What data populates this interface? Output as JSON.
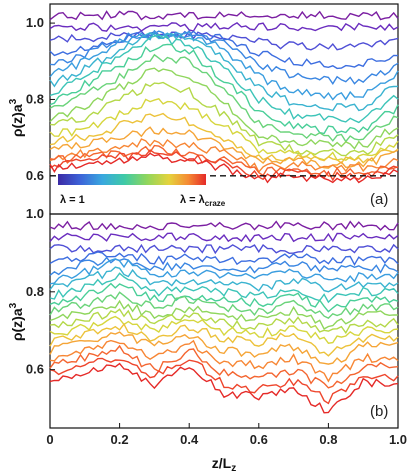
{
  "chart_data": [
    {
      "panel": "(a)",
      "type": "line",
      "xlim": [
        0,
        1
      ],
      "ylim": [
        0.5,
        1.05
      ],
      "yticks": [
        "0.6",
        "0.8",
        "1.0"
      ],
      "reference_line": {
        "y": 0.6,
        "style": "dashed"
      },
      "legend": {
        "min_label": "λ = 1",
        "max_label_prefix": "λ = λ",
        "max_label_sub": "craze"
      },
      "series": [
        {
          "x": [
            0,
            0.1,
            0.2,
            0.3,
            0.4,
            0.5,
            0.6,
            0.7,
            0.8,
            0.9,
            1.0
          ],
          "values": [
            1.02,
            1.02,
            1.02,
            1.02,
            1.02,
            1.02,
            1.02,
            1.02,
            1.02,
            1.02,
            1.02
          ]
        },
        {
          "x": [
            0,
            0.1,
            0.2,
            0.3,
            0.4,
            0.5,
            0.6,
            0.7,
            0.8,
            0.9,
            1.0
          ],
          "values": [
            0.99,
            0.99,
            0.99,
            0.99,
            0.99,
            0.99,
            0.99,
            0.99,
            0.99,
            0.99,
            0.99
          ]
        },
        {
          "x": [
            0,
            0.1,
            0.2,
            0.3,
            0.4,
            0.5,
            0.6,
            0.7,
            0.8,
            0.9,
            1.0
          ],
          "values": [
            0.96,
            0.96,
            0.97,
            0.97,
            0.97,
            0.96,
            0.95,
            0.94,
            0.94,
            0.94,
            0.95
          ]
        },
        {
          "x": [
            0,
            0.1,
            0.2,
            0.3,
            0.4,
            0.5,
            0.6,
            0.7,
            0.8,
            0.9,
            1.0
          ],
          "values": [
            0.92,
            0.93,
            0.96,
            0.97,
            0.97,
            0.96,
            0.92,
            0.9,
            0.89,
            0.89,
            0.92
          ]
        },
        {
          "x": [
            0,
            0.1,
            0.2,
            0.3,
            0.4,
            0.5,
            0.6,
            0.7,
            0.8,
            0.9,
            1.0
          ],
          "values": [
            0.89,
            0.92,
            0.96,
            0.97,
            0.97,
            0.95,
            0.89,
            0.86,
            0.85,
            0.85,
            0.89
          ]
        },
        {
          "x": [
            0,
            0.1,
            0.2,
            0.3,
            0.4,
            0.5,
            0.6,
            0.7,
            0.8,
            0.9,
            1.0
          ],
          "values": [
            0.86,
            0.9,
            0.95,
            0.97,
            0.97,
            0.93,
            0.86,
            0.82,
            0.81,
            0.81,
            0.87
          ]
        },
        {
          "x": [
            0,
            0.1,
            0.2,
            0.3,
            0.4,
            0.5,
            0.6,
            0.7,
            0.8,
            0.9,
            1.0
          ],
          "values": [
            0.84,
            0.88,
            0.93,
            0.97,
            0.96,
            0.91,
            0.83,
            0.79,
            0.78,
            0.78,
            0.84
          ]
        },
        {
          "x": [
            0,
            0.1,
            0.2,
            0.3,
            0.4,
            0.5,
            0.6,
            0.7,
            0.8,
            0.9,
            1.0
          ],
          "values": [
            0.81,
            0.86,
            0.91,
            0.96,
            0.95,
            0.88,
            0.8,
            0.76,
            0.75,
            0.75,
            0.81
          ]
        },
        {
          "x": [
            0,
            0.1,
            0.2,
            0.3,
            0.4,
            0.5,
            0.6,
            0.7,
            0.8,
            0.9,
            1.0
          ],
          "values": [
            0.79,
            0.84,
            0.89,
            0.94,
            0.93,
            0.85,
            0.77,
            0.73,
            0.72,
            0.72,
            0.78
          ]
        },
        {
          "x": [
            0,
            0.1,
            0.2,
            0.3,
            0.4,
            0.5,
            0.6,
            0.7,
            0.8,
            0.9,
            1.0
          ],
          "values": [
            0.77,
            0.81,
            0.86,
            0.91,
            0.9,
            0.82,
            0.74,
            0.71,
            0.7,
            0.7,
            0.76
          ]
        },
        {
          "x": [
            0,
            0.1,
            0.2,
            0.3,
            0.4,
            0.5,
            0.6,
            0.7,
            0.8,
            0.9,
            1.0
          ],
          "values": [
            0.75,
            0.78,
            0.83,
            0.88,
            0.86,
            0.79,
            0.71,
            0.69,
            0.68,
            0.68,
            0.73
          ]
        },
        {
          "x": [
            0,
            0.1,
            0.2,
            0.3,
            0.4,
            0.5,
            0.6,
            0.7,
            0.8,
            0.9,
            1.0
          ],
          "values": [
            0.73,
            0.75,
            0.8,
            0.84,
            0.82,
            0.76,
            0.69,
            0.67,
            0.66,
            0.66,
            0.71
          ]
        },
        {
          "x": [
            0,
            0.1,
            0.2,
            0.3,
            0.4,
            0.5,
            0.6,
            0.7,
            0.8,
            0.9,
            1.0
          ],
          "values": [
            0.71,
            0.72,
            0.76,
            0.8,
            0.78,
            0.73,
            0.67,
            0.66,
            0.65,
            0.65,
            0.69
          ]
        },
        {
          "x": [
            0,
            0.1,
            0.2,
            0.3,
            0.4,
            0.5,
            0.6,
            0.7,
            0.8,
            0.9,
            1.0
          ],
          "values": [
            0.69,
            0.7,
            0.73,
            0.76,
            0.74,
            0.7,
            0.65,
            0.65,
            0.64,
            0.64,
            0.67
          ]
        },
        {
          "x": [
            0,
            0.1,
            0.2,
            0.3,
            0.4,
            0.5,
            0.6,
            0.7,
            0.8,
            0.9,
            1.0
          ],
          "values": [
            0.67,
            0.68,
            0.7,
            0.72,
            0.71,
            0.68,
            0.64,
            0.64,
            0.63,
            0.63,
            0.66
          ]
        },
        {
          "x": [
            0,
            0.1,
            0.2,
            0.3,
            0.4,
            0.5,
            0.6,
            0.7,
            0.8,
            0.9,
            1.0
          ],
          "values": [
            0.65,
            0.66,
            0.68,
            0.69,
            0.68,
            0.66,
            0.62,
            0.63,
            0.62,
            0.62,
            0.64
          ]
        },
        {
          "x": [
            0,
            0.1,
            0.2,
            0.3,
            0.4,
            0.5,
            0.6,
            0.7,
            0.8,
            0.9,
            1.0
          ],
          "values": [
            0.64,
            0.65,
            0.66,
            0.67,
            0.66,
            0.64,
            0.61,
            0.62,
            0.61,
            0.61,
            0.63
          ]
        },
        {
          "x": [
            0,
            0.1,
            0.2,
            0.3,
            0.4,
            0.5,
            0.6,
            0.7,
            0.8,
            0.9,
            1.0
          ],
          "values": [
            0.63,
            0.64,
            0.65,
            0.66,
            0.65,
            0.63,
            0.6,
            0.61,
            0.6,
            0.6,
            0.62
          ]
        },
        {
          "x": [
            0,
            0.1,
            0.2,
            0.3,
            0.4,
            0.5,
            0.6,
            0.7,
            0.8,
            0.9,
            1.0
          ],
          "values": [
            0.62,
            0.63,
            0.64,
            0.65,
            0.64,
            0.62,
            0.59,
            0.6,
            0.59,
            0.59,
            0.61
          ]
        }
      ]
    },
    {
      "panel": "(b)",
      "type": "line",
      "xlim": [
        0,
        1
      ],
      "ylim": [
        0.45,
        1.0
      ],
      "yticks": [
        "0.6",
        "0.8",
        "1.0"
      ],
      "xticks": [
        "0",
        "0.2",
        "0.4",
        "0.6",
        "0.8",
        "1.0"
      ],
      "xlabel_main": "z/L",
      "xlabel_sub": "z",
      "series": [
        {
          "x": [
            0,
            0.1,
            0.2,
            0.3,
            0.4,
            0.5,
            0.6,
            0.7,
            0.8,
            0.9,
            1.0
          ],
          "values": [
            0.97,
            0.97,
            0.97,
            0.97,
            0.97,
            0.97,
            0.97,
            0.97,
            0.97,
            0.97,
            0.97
          ]
        },
        {
          "x": [
            0,
            0.1,
            0.2,
            0.3,
            0.4,
            0.5,
            0.6,
            0.7,
            0.8,
            0.9,
            1.0
          ],
          "values": [
            0.94,
            0.94,
            0.94,
            0.94,
            0.94,
            0.94,
            0.94,
            0.94,
            0.94,
            0.94,
            0.94
          ]
        },
        {
          "x": [
            0,
            0.1,
            0.2,
            0.3,
            0.4,
            0.5,
            0.6,
            0.7,
            0.8,
            0.9,
            1.0
          ],
          "values": [
            0.91,
            0.91,
            0.91,
            0.91,
            0.91,
            0.91,
            0.91,
            0.91,
            0.91,
            0.91,
            0.91
          ]
        },
        {
          "x": [
            0,
            0.1,
            0.2,
            0.3,
            0.4,
            0.5,
            0.6,
            0.7,
            0.8,
            0.9,
            1.0
          ],
          "values": [
            0.88,
            0.89,
            0.9,
            0.88,
            0.89,
            0.88,
            0.88,
            0.89,
            0.88,
            0.88,
            0.88
          ]
        },
        {
          "x": [
            0,
            0.1,
            0.2,
            0.3,
            0.4,
            0.5,
            0.6,
            0.7,
            0.8,
            0.9,
            1.0
          ],
          "values": [
            0.85,
            0.87,
            0.89,
            0.86,
            0.87,
            0.86,
            0.86,
            0.87,
            0.86,
            0.86,
            0.86
          ]
        },
        {
          "x": [
            0,
            0.1,
            0.2,
            0.3,
            0.4,
            0.5,
            0.6,
            0.7,
            0.8,
            0.9,
            1.0
          ],
          "values": [
            0.83,
            0.85,
            0.88,
            0.84,
            0.85,
            0.84,
            0.84,
            0.85,
            0.83,
            0.84,
            0.84
          ]
        },
        {
          "x": [
            0,
            0.1,
            0.2,
            0.3,
            0.4,
            0.5,
            0.6,
            0.7,
            0.8,
            0.9,
            1.0
          ],
          "values": [
            0.81,
            0.83,
            0.86,
            0.82,
            0.83,
            0.82,
            0.81,
            0.83,
            0.81,
            0.82,
            0.82
          ]
        },
        {
          "x": [
            0,
            0.1,
            0.2,
            0.3,
            0.4,
            0.5,
            0.6,
            0.7,
            0.8,
            0.9,
            1.0
          ],
          "values": [
            0.79,
            0.81,
            0.84,
            0.8,
            0.81,
            0.8,
            0.79,
            0.81,
            0.78,
            0.8,
            0.8
          ]
        },
        {
          "x": [
            0,
            0.1,
            0.2,
            0.3,
            0.4,
            0.5,
            0.6,
            0.7,
            0.8,
            0.9,
            1.0
          ],
          "values": [
            0.77,
            0.79,
            0.82,
            0.78,
            0.79,
            0.78,
            0.77,
            0.79,
            0.76,
            0.78,
            0.78
          ]
        },
        {
          "x": [
            0,
            0.1,
            0.2,
            0.3,
            0.4,
            0.5,
            0.6,
            0.7,
            0.8,
            0.9,
            1.0
          ],
          "values": [
            0.75,
            0.77,
            0.79,
            0.76,
            0.78,
            0.76,
            0.75,
            0.77,
            0.74,
            0.76,
            0.76
          ]
        },
        {
          "x": [
            0,
            0.1,
            0.2,
            0.3,
            0.4,
            0.5,
            0.6,
            0.7,
            0.8,
            0.9,
            1.0
          ],
          "values": [
            0.73,
            0.75,
            0.77,
            0.74,
            0.76,
            0.74,
            0.73,
            0.75,
            0.71,
            0.74,
            0.74
          ]
        },
        {
          "x": [
            0,
            0.1,
            0.2,
            0.3,
            0.4,
            0.5,
            0.6,
            0.7,
            0.8,
            0.9,
            1.0
          ],
          "values": [
            0.71,
            0.73,
            0.75,
            0.72,
            0.74,
            0.72,
            0.71,
            0.73,
            0.69,
            0.72,
            0.72
          ]
        },
        {
          "x": [
            0,
            0.1,
            0.2,
            0.3,
            0.4,
            0.5,
            0.6,
            0.7,
            0.8,
            0.9,
            1.0
          ],
          "values": [
            0.69,
            0.71,
            0.73,
            0.7,
            0.73,
            0.7,
            0.69,
            0.71,
            0.67,
            0.7,
            0.7
          ]
        },
        {
          "x": [
            0,
            0.1,
            0.2,
            0.3,
            0.4,
            0.5,
            0.6,
            0.7,
            0.8,
            0.9,
            1.0
          ],
          "values": [
            0.67,
            0.69,
            0.71,
            0.68,
            0.71,
            0.68,
            0.67,
            0.69,
            0.64,
            0.68,
            0.68
          ]
        },
        {
          "x": [
            0,
            0.1,
            0.2,
            0.3,
            0.4,
            0.5,
            0.6,
            0.7,
            0.8,
            0.9,
            1.0
          ],
          "values": [
            0.65,
            0.67,
            0.69,
            0.66,
            0.69,
            0.65,
            0.64,
            0.66,
            0.61,
            0.66,
            0.66
          ]
        },
        {
          "x": [
            0,
            0.1,
            0.2,
            0.3,
            0.4,
            0.5,
            0.6,
            0.7,
            0.8,
            0.9,
            1.0
          ],
          "values": [
            0.63,
            0.65,
            0.67,
            0.63,
            0.67,
            0.62,
            0.61,
            0.63,
            0.58,
            0.63,
            0.63
          ]
        },
        {
          "x": [
            0,
            0.1,
            0.2,
            0.3,
            0.4,
            0.5,
            0.6,
            0.7,
            0.8,
            0.9,
            1.0
          ],
          "values": [
            0.61,
            0.63,
            0.65,
            0.6,
            0.65,
            0.59,
            0.58,
            0.6,
            0.55,
            0.61,
            0.61
          ]
        },
        {
          "x": [
            0,
            0.1,
            0.2,
            0.3,
            0.4,
            0.5,
            0.6,
            0.7,
            0.8,
            0.9,
            1.0
          ],
          "values": [
            0.59,
            0.61,
            0.63,
            0.58,
            0.63,
            0.56,
            0.55,
            0.57,
            0.52,
            0.59,
            0.58
          ]
        },
        {
          "x": [
            0,
            0.1,
            0.2,
            0.3,
            0.4,
            0.5,
            0.6,
            0.7,
            0.8,
            0.9,
            1.0
          ],
          "values": [
            0.57,
            0.59,
            0.61,
            0.56,
            0.61,
            0.54,
            0.53,
            0.55,
            0.49,
            0.57,
            0.56
          ]
        }
      ]
    }
  ],
  "ylabel_main": "ρ(z)a",
  "ylabel_sup": "3",
  "colors": [
    "#7b1fa2",
    "#6a2dbf",
    "#4f4fd6",
    "#3d6ee0",
    "#3a86e2",
    "#3a9ddf",
    "#3ab3d0",
    "#3cc4b8",
    "#49ce98",
    "#6ad37a",
    "#8fd65d",
    "#b4d849",
    "#d6d63e",
    "#ecc23a",
    "#f5a537",
    "#f78634",
    "#f46530",
    "#ee452c",
    "#e52a28"
  ]
}
